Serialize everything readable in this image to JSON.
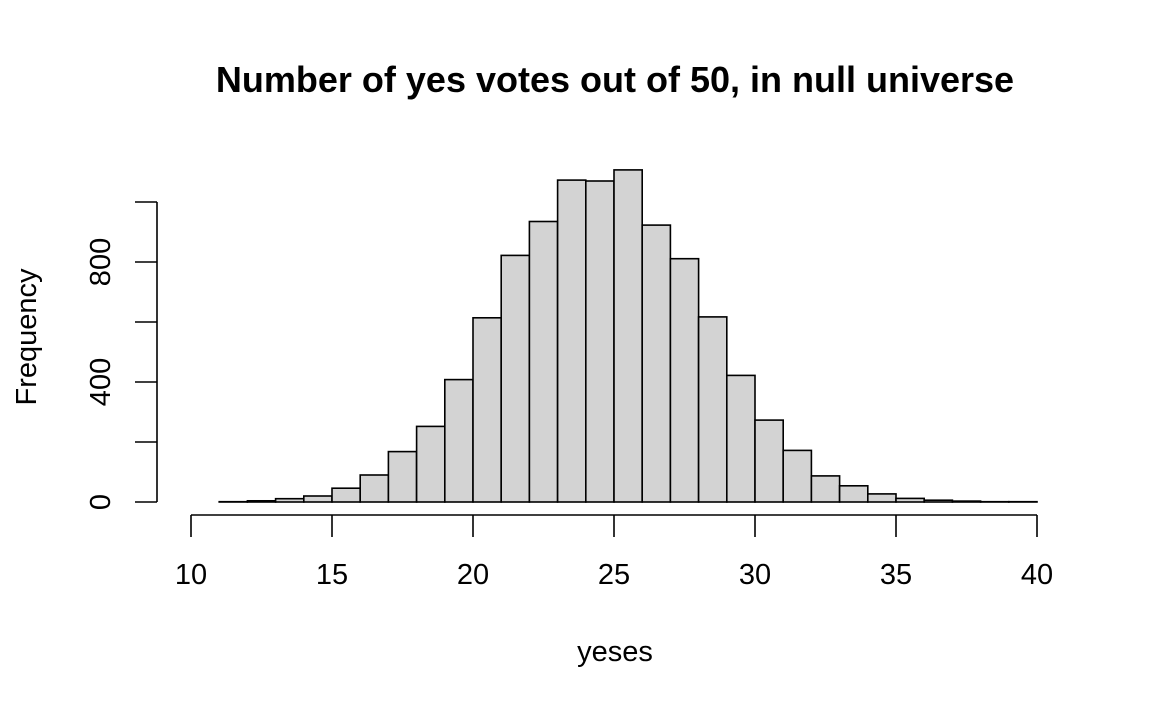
{
  "chart_data": {
    "type": "bar",
    "title": "Number of yes votes out of 50, in null universe",
    "xlabel": "yeses",
    "ylabel": "Frequency",
    "xlim": [
      10,
      40
    ],
    "ylim": [
      0,
      1100
    ],
    "x_ticks": [
      10,
      15,
      20,
      25,
      30,
      35,
      40
    ],
    "y_ticks": [
      0,
      200,
      400,
      600,
      800,
      1000
    ],
    "y_tick_labels_shown": [
      "0",
      "400",
      "800"
    ],
    "bin_width": 1,
    "bins": [
      {
        "x0": 10,
        "x1": 11,
        "count": 0
      },
      {
        "x0": 11,
        "x1": 12,
        "count": 1
      },
      {
        "x0": 12,
        "x1": 13,
        "count": 4
      },
      {
        "x0": 13,
        "x1": 14,
        "count": 11
      },
      {
        "x0": 14,
        "x1": 15,
        "count": 20
      },
      {
        "x0": 15,
        "x1": 16,
        "count": 46
      },
      {
        "x0": 16,
        "x1": 17,
        "count": 90
      },
      {
        "x0": 17,
        "x1": 18,
        "count": 168
      },
      {
        "x0": 18,
        "x1": 19,
        "count": 252
      },
      {
        "x0": 19,
        "x1": 20,
        "count": 408
      },
      {
        "x0": 20,
        "x1": 21,
        "count": 614
      },
      {
        "x0": 21,
        "x1": 22,
        "count": 822
      },
      {
        "x0": 22,
        "x1": 23,
        "count": 935
      },
      {
        "x0": 23,
        "x1": 24,
        "count": 1073
      },
      {
        "x0": 24,
        "x1": 25,
        "count": 1070
      },
      {
        "x0": 25,
        "x1": 26,
        "count": 1107
      },
      {
        "x0": 26,
        "x1": 27,
        "count": 923
      },
      {
        "x0": 27,
        "x1": 28,
        "count": 811
      },
      {
        "x0": 28,
        "x1": 29,
        "count": 617
      },
      {
        "x0": 29,
        "x1": 30,
        "count": 422
      },
      {
        "x0": 30,
        "x1": 31,
        "count": 273
      },
      {
        "x0": 31,
        "x1": 32,
        "count": 172
      },
      {
        "x0": 32,
        "x1": 33,
        "count": 87
      },
      {
        "x0": 33,
        "x1": 34,
        "count": 54
      },
      {
        "x0": 34,
        "x1": 35,
        "count": 27
      },
      {
        "x0": 35,
        "x1": 36,
        "count": 12
      },
      {
        "x0": 36,
        "x1": 37,
        "count": 6
      },
      {
        "x0": 37,
        "x1": 38,
        "count": 3
      },
      {
        "x0": 38,
        "x1": 39,
        "count": 1
      },
      {
        "x0": 39,
        "x1": 40,
        "count": 1
      }
    ],
    "grid": false,
    "bar_fill": "#d3d3d3",
    "bar_stroke": "#000000"
  }
}
